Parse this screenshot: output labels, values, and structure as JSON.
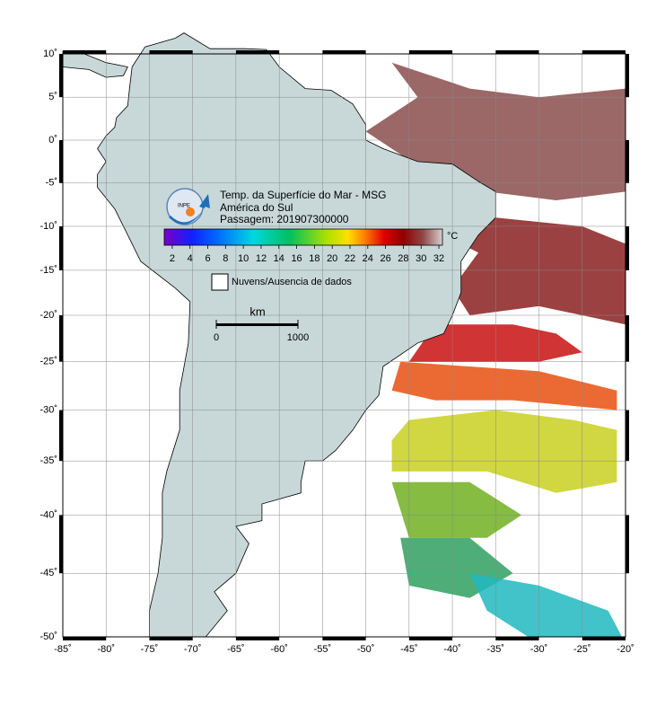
{
  "map": {
    "title_lines": [
      "Temp. da Superfície do Mar - MSG",
      "América do Sul",
      "Passagem: 201907300000"
    ],
    "logo": "INPE",
    "lon_ticks": [
      {
        "value": -85,
        "label": "-85˚"
      },
      {
        "value": -80,
        "label": "-80˚"
      },
      {
        "value": -75,
        "label": "-75˚"
      },
      {
        "value": -70,
        "label": "-70˚"
      },
      {
        "value": -65,
        "label": "-65˚"
      },
      {
        "value": -60,
        "label": "-60˚"
      },
      {
        "value": -55,
        "label": "-55˚"
      },
      {
        "value": -50,
        "label": "-50˚"
      },
      {
        "value": -45,
        "label": "-45˚"
      },
      {
        "value": -40,
        "label": "-40˚"
      },
      {
        "value": -35,
        "label": "-35˚"
      },
      {
        "value": -30,
        "label": "-30˚"
      },
      {
        "value": -25,
        "label": "-25˚"
      },
      {
        "value": -20,
        "label": "-20˚"
      }
    ],
    "lat_ticks": [
      {
        "value": 10,
        "label": "10˚"
      },
      {
        "value": 5,
        "label": "5˚"
      },
      {
        "value": 0,
        "label": "0˚"
      },
      {
        "value": -5,
        "label": "-5˚"
      },
      {
        "value": -10,
        "label": "-10˚"
      },
      {
        "value": -15,
        "label": "-15˚"
      },
      {
        "value": -20,
        "label": "-20˚"
      },
      {
        "value": -25,
        "label": "-25˚"
      },
      {
        "value": -30,
        "label": "-30˚"
      },
      {
        "value": -35,
        "label": "-35˚"
      },
      {
        "value": -40,
        "label": "-40˚"
      },
      {
        "value": -45,
        "label": "-45˚"
      },
      {
        "value": -50,
        "label": "-50˚"
      }
    ],
    "colorbar": {
      "unit": "°C",
      "lim": [
        1.1,
        32.4
      ],
      "ticks": [
        2,
        4,
        6,
        8,
        10,
        12,
        14,
        16,
        18,
        20,
        22,
        24,
        26,
        28,
        30,
        32
      ]
    },
    "legend": "Nuvens/Ausencia de dados",
    "scale": {
      "unit": "km",
      "ticks": [
        0,
        1000
      ]
    }
  }
}
